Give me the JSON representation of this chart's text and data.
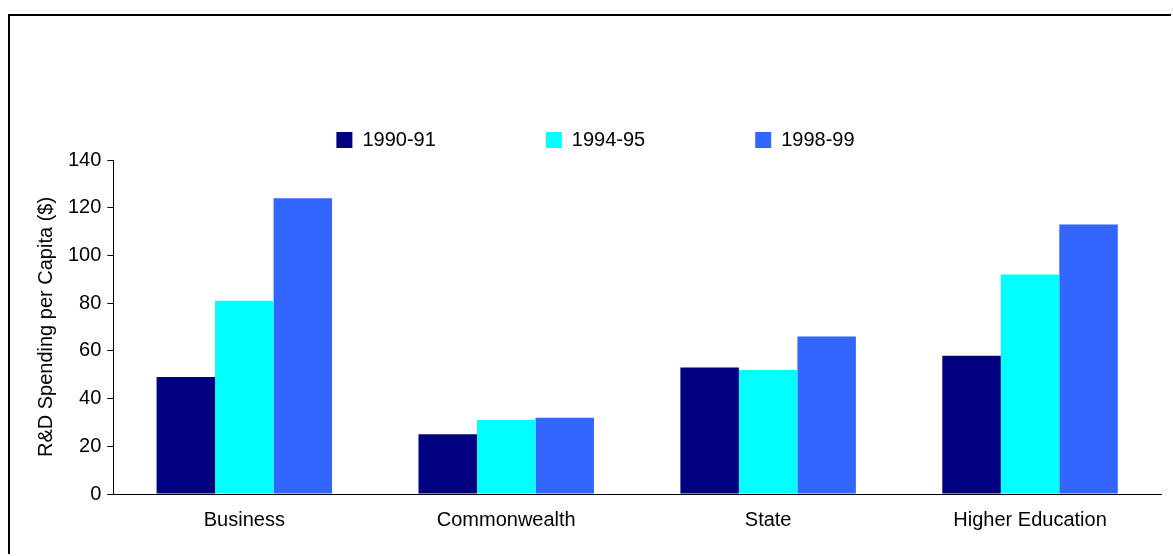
{
  "chart_data": {
    "type": "bar",
    "ylabel": "R&D Spending per Capita ($)",
    "categories": [
      "Business",
      "Commonwealth",
      "State",
      "Higher Education"
    ],
    "series": [
      {
        "name": "1990-91",
        "color": "#000080",
        "values": [
          49,
          25,
          53,
          58
        ]
      },
      {
        "name": "1994-95",
        "color": "#00ffff",
        "values": [
          81,
          31,
          52,
          92
        ]
      },
      {
        "name": "1998-99",
        "color": "#3366ff",
        "values": [
          124,
          32,
          66,
          113
        ]
      }
    ],
    "ylim": [
      0,
      140
    ],
    "yticks": [
      0,
      20,
      40,
      60,
      80,
      100,
      120,
      140
    ],
    "grid": false,
    "legend": "top"
  }
}
